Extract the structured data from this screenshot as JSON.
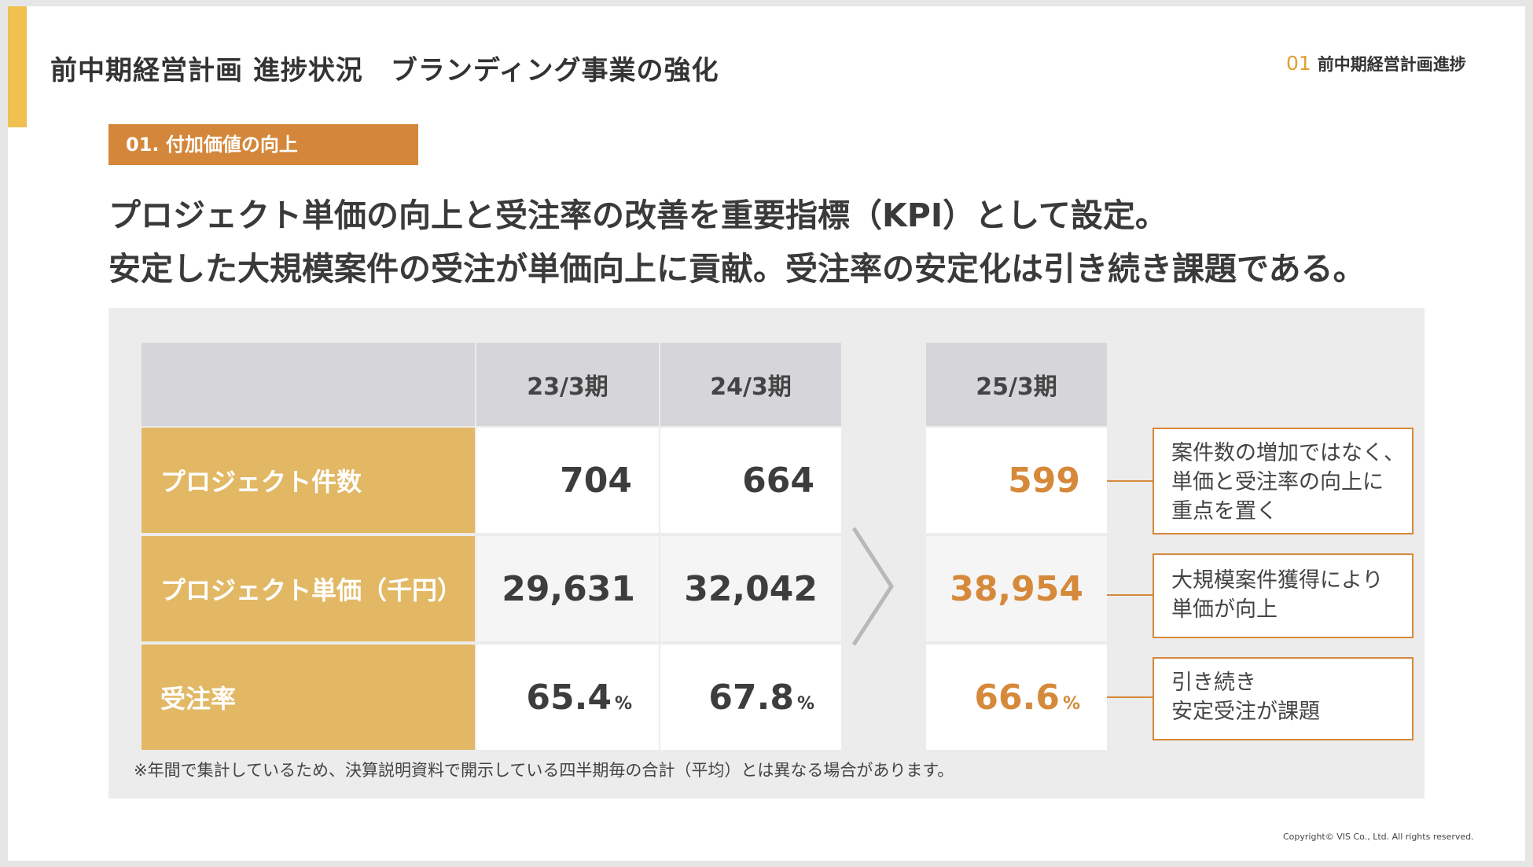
{
  "title": "前中期経営計画 進捗状況　ブランディング事業の強化",
  "section_tag": {
    "number": "01",
    "label": "前中期経営計画進捗"
  },
  "subsection": "01. 付加価値の向上",
  "headline": [
    "プロジェクト単価の向上と受注率の改善を重要指標（KPI）として設定。",
    "安定した大規模案件の受注が単価向上に貢献。受注率の安定化は引き続き課題である。"
  ],
  "table": {
    "columns": [
      "23/3期",
      "24/3期",
      "25/3期"
    ],
    "rows": [
      {
        "label": "プロジェクト件数",
        "values": [
          "704",
          "664",
          "599"
        ],
        "unit": ""
      },
      {
        "label": "プロジェクト単価（千円）",
        "values": [
          "29,631",
          "32,042",
          "38,954"
        ],
        "unit": ""
      },
      {
        "label": "受注率",
        "values": [
          "65.4",
          "67.8",
          "66.6"
        ],
        "unit": "%"
      }
    ]
  },
  "notes": [
    [
      "案件数の増加ではなく、",
      "単価と受注率の向上に",
      "重点を置く"
    ],
    [
      "大規模案件獲得により",
      "単価が向上"
    ],
    [
      "引き続き",
      "安定受注が課題"
    ]
  ],
  "footnote": "※年間で集計しているため、決算説明資料で開示している四半期毎の合計（平均）とは異なる場合があります。",
  "copyright": "Copyright© VIS Co., Ltd. All rights reserved.",
  "colors": {
    "accent_orange": "#d6893a",
    "label_gold": "#e2b865",
    "accent_bar": "#f0c050"
  },
  "icons": {
    "transition": "chevron-right-icon"
  }
}
